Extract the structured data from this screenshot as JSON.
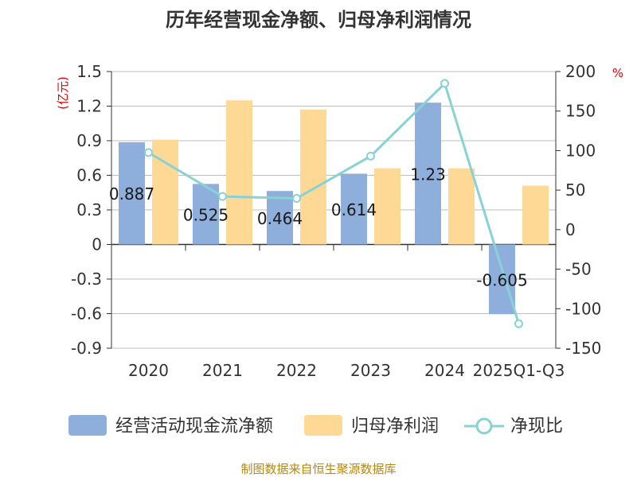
{
  "chart_data": {
    "type": "bar",
    "title": "历年经营现金净额、归母净利润情况",
    "categories": [
      "2020",
      "2021",
      "2022",
      "2023",
      "2024",
      "2025Q1-Q3"
    ],
    "series": [
      {
        "name": "经营活动现金流净额",
        "type": "bar",
        "axis": "left",
        "color": "#8eaedc",
        "values": [
          0.887,
          0.525,
          0.464,
          0.614,
          1.23,
          -0.605
        ],
        "labels": [
          "0.887",
          "0.525",
          "0.464",
          "0.614",
          "1.23",
          "-0.605"
        ]
      },
      {
        "name": "归母净利润",
        "type": "bar",
        "axis": "left",
        "color": "#fed895",
        "values": [
          0.91,
          1.25,
          1.17,
          0.66,
          0.66,
          0.51
        ]
      },
      {
        "name": "净现比",
        "type": "line",
        "axis": "right",
        "color": "#88d2d6",
        "values": [
          97.5,
          42,
          39.6,
          93,
          185,
          -119
        ]
      }
    ],
    "left_axis": {
      "unit": "(亿元)",
      "min": -0.9,
      "max": 1.5,
      "ticks": [
        "1.5",
        "1.2",
        "0.9",
        "0.6",
        "0.3",
        "0",
        "-0.3",
        "-0.6",
        "-0.9"
      ]
    },
    "right_axis": {
      "unit": "%",
      "min": -150,
      "max": 200,
      "ticks": [
        "200",
        "150",
        "100",
        "50",
        "0",
        "-50",
        "-100",
        "-150"
      ]
    }
  },
  "source": "制图数据来自恒生聚源数据库"
}
